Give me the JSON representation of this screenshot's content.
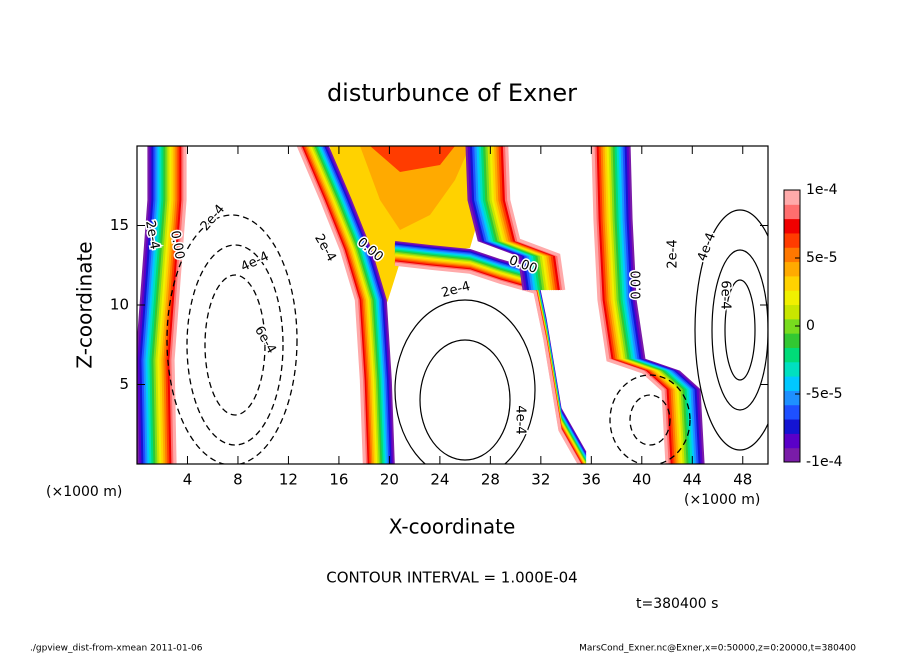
{
  "chart_data": {
    "type": "contour",
    "title": "disturbunce of Exner",
    "x_label": "X-coordinate",
    "y_label": "Z-coordinate",
    "x_unit": "(×1000 m)",
    "xlim": [
      0,
      50
    ],
    "xticks": [
      4,
      8,
      12,
      16,
      20,
      24,
      28,
      32,
      36,
      40,
      44,
      48
    ],
    "ylim": [
      0,
      20
    ],
    "yticks": [
      5,
      10,
      15
    ],
    "colorbar": {
      "lim": [
        -0.0001,
        0.0001
      ],
      "ticks": [
        {
          "value": 0.0001,
          "label": "1e-4"
        },
        {
          "value": 5e-05,
          "label": "5e-5"
        },
        0,
        {
          "value": -5e-05,
          "label": "-5e-5"
        },
        {
          "value": -0.0001,
          "label": "-1e-4"
        }
      ],
      "colors": [
        "#7a1ca8",
        "#5a00c8",
        "#1414d2",
        "#1e50ff",
        "#1e90ff",
        "#00c8ff",
        "#00e0c0",
        "#00dc78",
        "#32c832",
        "#78dc1e",
        "#c8e600",
        "#f0f000",
        "#ffd200",
        "#ffaa00",
        "#ff7800",
        "#ff3c00",
        "#f00000",
        "#ff6e6e",
        "#ffaaaa"
      ]
    },
    "contour_labels": [
      "2e-4",
      "0.00",
      "2e-4",
      "4e-4",
      "2e-4",
      "6e-4",
      "0.00",
      "0.00",
      "2e-4",
      "4e-4",
      "0.00",
      "2e-4",
      "4e-4",
      "6e-4"
    ],
    "contour_interval": "CONTOUR INTERVAL = 1.000E-04",
    "time_label": "t=380400 s"
  },
  "footer": {
    "left": "./gpview_dist-from-xmean  2011-01-06",
    "right": "MarsCond_Exner.nc@Exner,x=0:50000,z=0:20000,t=380400"
  }
}
